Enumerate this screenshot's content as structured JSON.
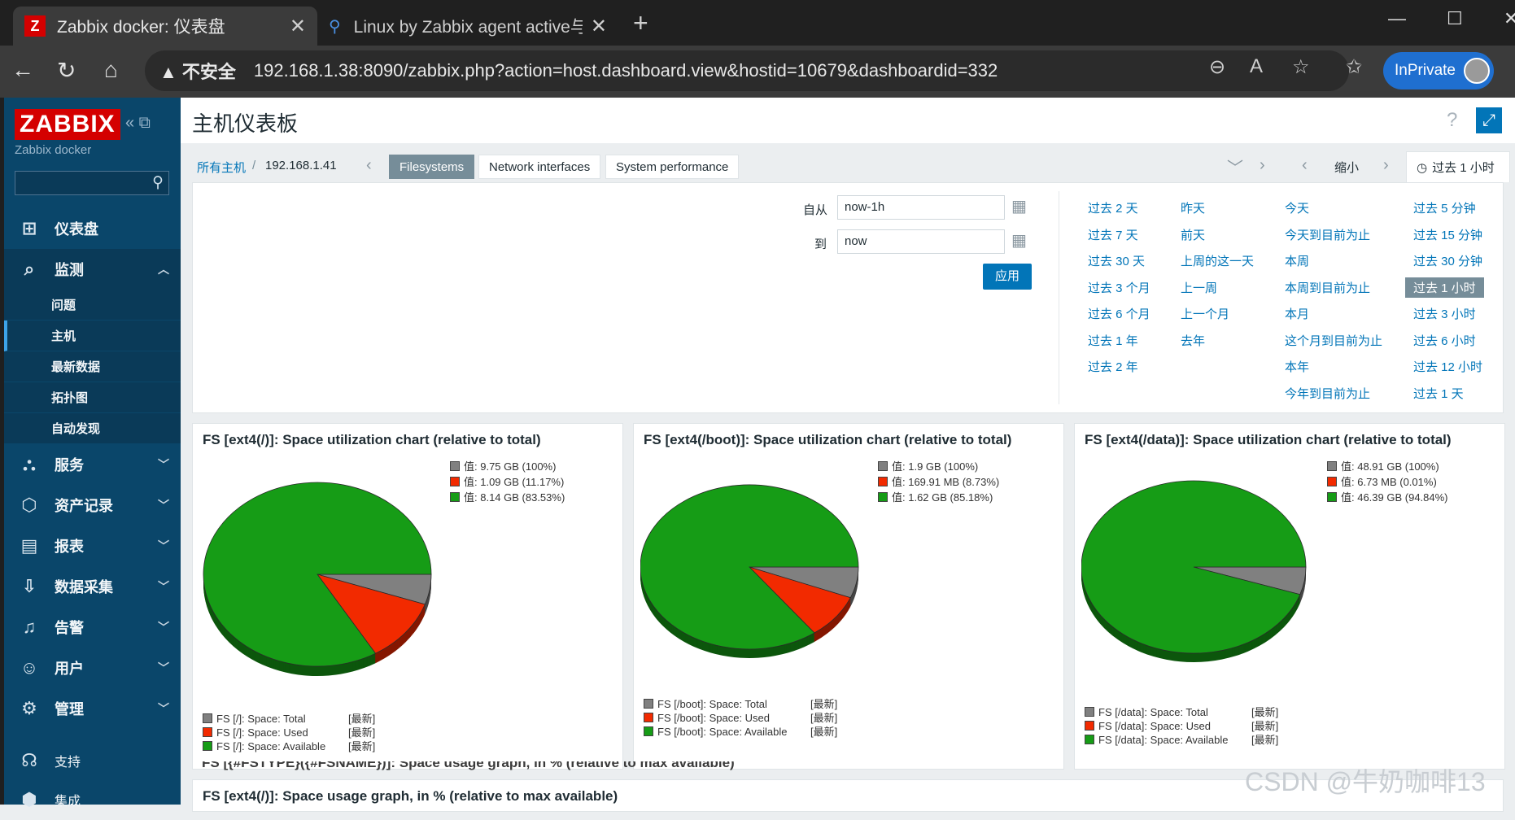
{
  "browser": {
    "tabs": [
      {
        "title": "Zabbix docker: 仪表盘",
        "favicon": "Z"
      },
      {
        "title": "Linux by Zabbix agent active与Lin"
      }
    ],
    "security_label": "不安全",
    "url": "192.168.1.38:8090/zabbix.php?action=host.dashboard.view&hostid=10679&dashboardid=332",
    "inprivate_label": "InPrivate"
  },
  "sidebar": {
    "logo": "ZABBIX",
    "server_name": "Zabbix docker",
    "menu": [
      {
        "label": "仪表盘",
        "icon": "dashboard-icon"
      },
      {
        "label": "监测",
        "icon": "monitoring-icon"
      },
      {
        "label": "服务",
        "icon": "services-icon"
      },
      {
        "label": "资产记录",
        "icon": "inventory-icon"
      },
      {
        "label": "报表",
        "icon": "reports-icon"
      },
      {
        "label": "数据采集",
        "icon": "data-collection-icon"
      },
      {
        "label": "告警",
        "icon": "alerts-icon"
      },
      {
        "label": "用户",
        "icon": "users-icon"
      },
      {
        "label": "管理",
        "icon": "admin-icon"
      },
      {
        "label": "支持",
        "icon": "support-icon"
      },
      {
        "label": "集成",
        "icon": "integrations-icon"
      }
    ],
    "submenu": [
      "问题",
      "主机",
      "最新数据",
      "拓扑图",
      "自动发现"
    ]
  },
  "page": {
    "title": "主机仪表板",
    "help": "?",
    "breadcrumb": {
      "all_hosts": "所有主机",
      "sep": "/",
      "host": "192.168.1.41"
    },
    "dashboard_tabs": [
      "Filesystems",
      "Network interfaces",
      "System performance"
    ],
    "zoom_out": "缩小",
    "time_tab": "过去 1 小时"
  },
  "time_filter": {
    "from_label": "自从",
    "from_value": "now-1h",
    "to_label": "到",
    "to_value": "now",
    "apply": "应用",
    "quick_ranges": [
      [
        "过去 2 天",
        "过去 7 天",
        "过去 30 天",
        "过去 3 个月",
        "过去 6 个月",
        "过去 1 年",
        "过去 2 年"
      ],
      [
        "昨天",
        "前天",
        "上周的这一天",
        "上一周",
        "上一个月",
        "去年"
      ],
      [
        "今天",
        "今天到目前为止",
        "本周",
        "本周到目前为止",
        "本月",
        "这个月到目前为止",
        "本年",
        "今年到目前为止"
      ],
      [
        "过去 5 分钟",
        "过去 15 分钟",
        "过去 30 分钟",
        "过去 1 小时",
        "过去 3 小时",
        "过去 6 小时",
        "过去 12 小时",
        "过去 1 天"
      ]
    ],
    "selected": "过去 1 小时"
  },
  "widgets": [
    {
      "title": "FS [ext4(/)]: Space utilization chart (relative to total)",
      "chart_data": {
        "type": "pie",
        "title": "FS [ext4(/)]: Space utilization chart (relative to total)",
        "total": "值: 9.75 GB (100%)",
        "slices": [
          {
            "name": "FS [/]: Space: Used",
            "value_label": "值: 1.09 GB (11.17%)",
            "percent": 11.17,
            "color": "#f22a00"
          },
          {
            "name": "FS [/]: Space: Available",
            "value_label": "值: 8.14 GB (83.53%)",
            "percent": 83.53,
            "color": "#169c16"
          }
        ],
        "series": [
          "FS [/]: Space: Total",
          "FS [/]: Space: Used",
          "FS [/]: Space: Available"
        ],
        "series_colors": [
          "#808080",
          "#f22a00",
          "#169c16"
        ],
        "legend_values": [
          "值: 9.75 GB (100%)",
          "值: 1.09 GB (11.17%)",
          "值: 8.14 GB (83.53%)"
        ],
        "latest": "[最新]"
      }
    },
    {
      "title": "FS [ext4(/boot)]: Space utilization chart (relative to total)",
      "chart_data": {
        "type": "pie",
        "title": "FS [ext4(/boot)]: Space utilization chart (relative to total)",
        "total": "值: 1.9 GB (100%)",
        "slices": [
          {
            "name": "FS [/boot]: Space: Used",
            "value_label": "值: 169.91 MB (8.73%)",
            "percent": 8.73,
            "color": "#f22a00"
          },
          {
            "name": "FS [/boot]: Space: Available",
            "value_label": "值: 1.62 GB (85.18%)",
            "percent": 85.18,
            "color": "#169c16"
          }
        ],
        "series": [
          "FS [/boot]: Space: Total",
          "FS [/boot]: Space: Used",
          "FS [/boot]: Space: Available"
        ],
        "series_colors": [
          "#808080",
          "#f22a00",
          "#169c16"
        ],
        "legend_values": [
          "值: 1.9 GB (100%)",
          "值: 169.91 MB (8.73%)",
          "值: 1.62 GB (85.18%)"
        ],
        "latest": "[最新]"
      }
    },
    {
      "title": "FS [ext4(/data)]: Space utilization chart (relative to total)",
      "chart_data": {
        "type": "pie",
        "title": "FS [ext4(/data)]: Space utilization chart (relative to total)",
        "total": "值: 48.91 GB (100%)",
        "slices": [
          {
            "name": "FS [/data]: Space: Used",
            "value_label": "值: 6.73 MB (0.01%)",
            "percent": 0.01,
            "color": "#f22a00"
          },
          {
            "name": "FS [/data]: Space: Available",
            "value_label": "值: 46.39 GB (94.84%)",
            "percent": 94.84,
            "color": "#169c16"
          }
        ],
        "series": [
          "FS [/data]: Space: Total",
          "FS [/data]: Space: Used",
          "FS [/data]: Space: Available"
        ],
        "series_colors": [
          "#808080",
          "#f22a00",
          "#169c16"
        ],
        "legend_values": [
          "值: 48.91 GB (100%)",
          "值: 6.73 MB (0.01%)",
          "值: 46.39 GB (94.84%)"
        ],
        "latest": "[最新]"
      }
    }
  ],
  "bottom_widget_title": "FS [ext4(/)]: Space usage graph, in % (relative to max available)",
  "overlap_title": "FS [{#FSTYPE}({#FSNAME})]: Space usage graph, in % (relative to max available)",
  "watermark": "CSDN @牛奶咖啡13"
}
